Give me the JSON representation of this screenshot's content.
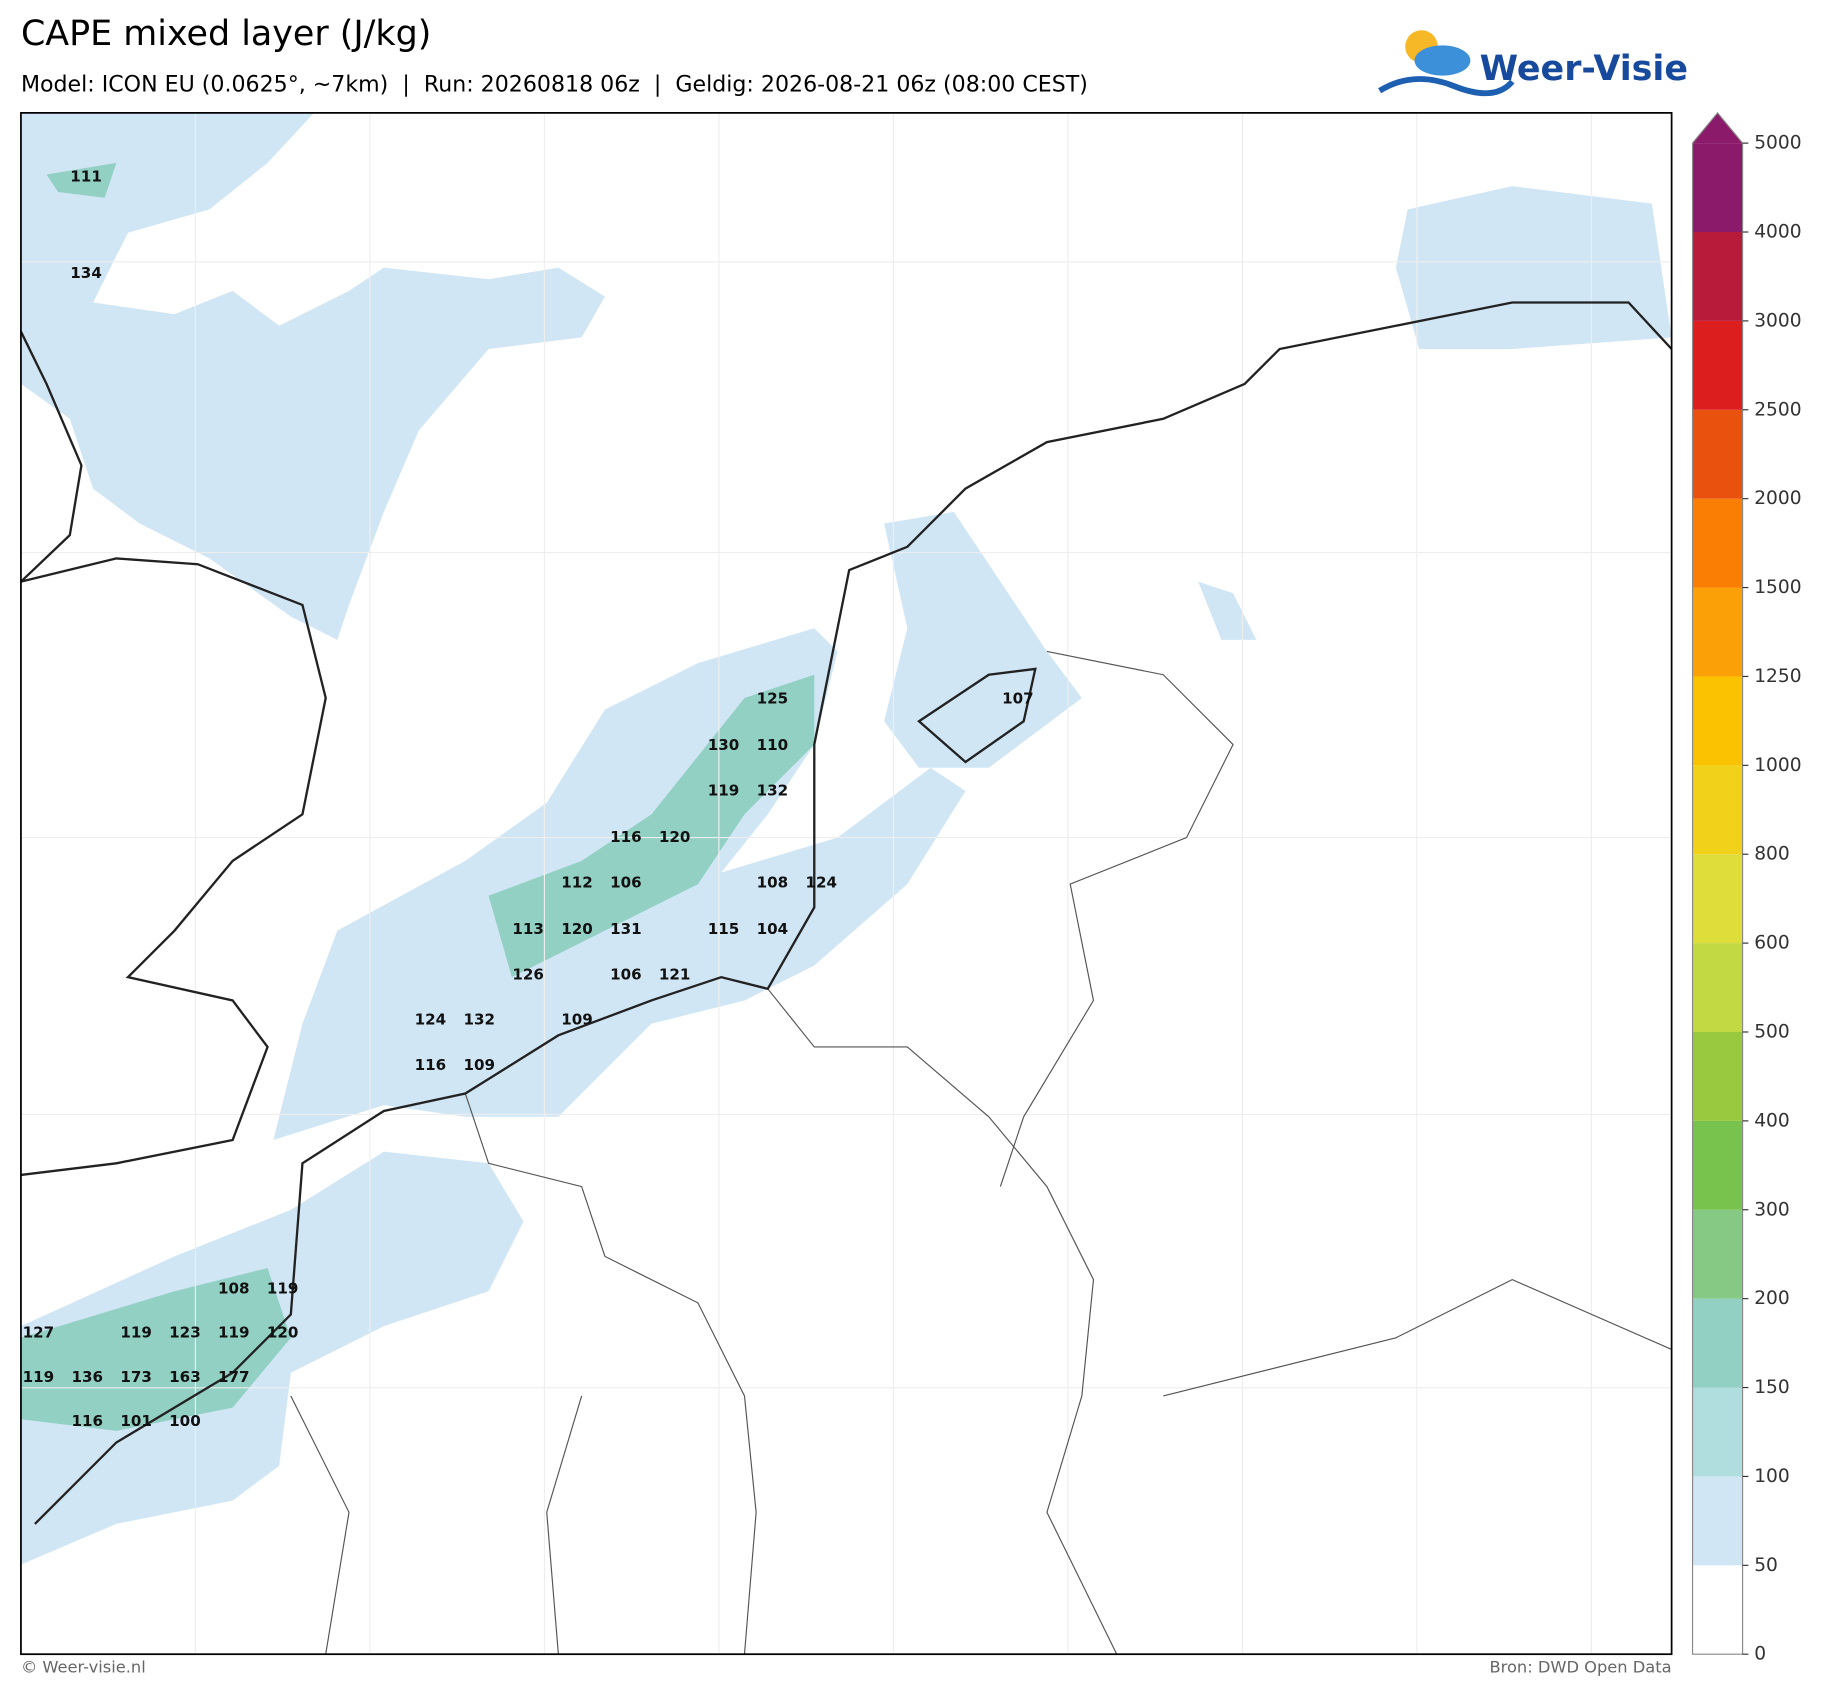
{
  "header": {
    "title": "CAPE mixed layer (J/kg)",
    "subtitle": "Model: ICON EU (0.0625°, ~7km)  |  Run: 20260818 06z  |  Geldig: 2026-08-21 06z (08:00 CEST)",
    "logo": "Weer-Visie"
  },
  "map": {
    "labels": [
      "111",
      "134",
      "125",
      "130",
      "110",
      "119",
      "132",
      "116",
      "120",
      "112",
      "106",
      "108",
      "124",
      "113",
      "120",
      "131",
      "115",
      "104",
      "126",
      "106",
      "121",
      "124",
      "132",
      "109",
      "116",
      "109",
      "107",
      "108",
      "119",
      "127",
      "119",
      "123",
      "119",
      "120",
      "119",
      "136",
      "173",
      "163",
      "177",
      "116",
      "101",
      "100"
    ]
  },
  "colorbar": {
    "levels": [
      0,
      50,
      100,
      150,
      200,
      300,
      400,
      500,
      600,
      800,
      1000,
      1250,
      1500,
      2000,
      2500,
      3000,
      4000,
      5000
    ],
    "colors": [
      "#ffffff",
      "#d0e6f5",
      "#b0dddd",
      "#92d0c3",
      "#86c985",
      "#78c24e",
      "#99c93e",
      "#c3d944",
      "#dedd3a",
      "#f2d11a",
      "#fbc201",
      "#fba107",
      "#fa7d04",
      "#e9510f",
      "#dc1e1e",
      "#b81a3a",
      "#8b1a6a"
    ]
  },
  "footer": {
    "left": "© Weer-visie.nl",
    "right": "Bron: DWD Open Data"
  }
}
